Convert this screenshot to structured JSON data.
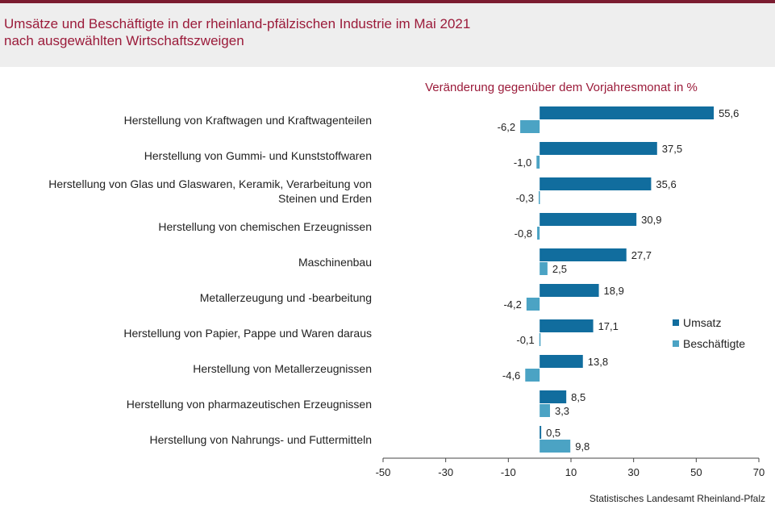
{
  "title_line1": "Umsätze und Beschäftigte in der rheinland-pfälzischen Industrie im Mai 2021",
  "title_line2": "nach ausgewählten Wirtschaftszweigen",
  "source": "Statistisches Landesamt Rheinland-Pfalz",
  "colors": {
    "umsatz": "#116d9e",
    "beschaeftigte": "#4ba3c4",
    "title": "#9b1b3a",
    "topbar": "#7b1c30"
  },
  "chart_data": {
    "type": "bar",
    "orientation": "horizontal",
    "subtitle": "Veränderung gegenüber dem Vorjahresmonat in %",
    "categories": [
      [
        "Herstellung von Kraftwagen und Kraftwagenteilen"
      ],
      [
        "Herstellung von Gummi- und Kunststoffwaren"
      ],
      [
        "Herstellung von Glas und Glaswaren, Keramik, Verarbeitung von",
        "Steinen und Erden"
      ],
      [
        "Herstellung von chemischen Erzeugnissen"
      ],
      [
        "Maschinenbau"
      ],
      [
        "Metallerzeugung und -bearbeitung"
      ],
      [
        "Herstellung von Papier, Pappe und Waren daraus"
      ],
      [
        "Herstellung von Metallerzeugnissen"
      ],
      [
        "Herstellung von pharmazeutischen Erzeugnissen"
      ],
      [
        "Herstellung von Nahrungs- und Futtermitteln"
      ]
    ],
    "series": [
      {
        "name": "Umsatz",
        "values": [
          55.6,
          37.5,
          35.6,
          30.9,
          27.7,
          18.9,
          17.1,
          13.8,
          8.5,
          0.5
        ],
        "labels": [
          "55,6",
          "37,5",
          "35,6",
          "30,9",
          "27,7",
          "18,9",
          "17,1",
          "13,8",
          "8,5",
          "0,5"
        ]
      },
      {
        "name": "Beschäftigte",
        "values": [
          -6.2,
          -1.0,
          -0.3,
          -0.8,
          2.5,
          -4.2,
          -0.1,
          -4.6,
          3.3,
          9.8
        ],
        "labels": [
          "-6,2",
          "-1,0",
          "-0,3",
          "-0,8",
          "2,5",
          "-4,2",
          "-0,1",
          "-4,6",
          "3,3",
          "9,8"
        ]
      }
    ],
    "xlim": [
      -50,
      70
    ],
    "xticks": [
      -50,
      -30,
      -10,
      10,
      30,
      50,
      70
    ],
    "legend_position": "right",
    "grid": false
  }
}
